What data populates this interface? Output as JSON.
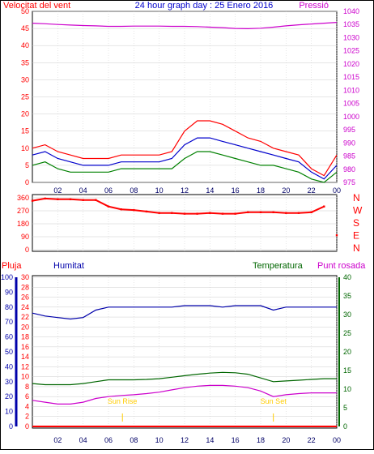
{
  "header": {
    "left_title": "Velocitat del vent",
    "center_title": "24 hour graph day : 25 Enero 2016",
    "right_title": "Pressió"
  },
  "labels": {
    "pluja": "Pluja",
    "humitat": "Humitat",
    "temperatura": "Temperatura",
    "punt_rosada": "Punt rosada",
    "sun_rise": "Sun Rise",
    "sun_set": "Sun Set"
  },
  "colors": {
    "wind_title": "#ff0000",
    "pressure": "#cc00cc",
    "wind_gust": "#ff0000",
    "wind_avg": "#0000cc",
    "wind_speed": "#008000",
    "direction": "#ff0000",
    "humidity": "#0000aa",
    "temperature": "#006600",
    "dewpoint": "#cc00cc",
    "rain": "#ff0000",
    "sun": "#ffcc00",
    "grid": "#cccccc"
  },
  "x_ticks": [
    "02",
    "04",
    "06",
    "08",
    "10",
    "12",
    "14",
    "16",
    "18",
    "20",
    "22",
    "00"
  ],
  "chart_data": [
    {
      "type": "line",
      "name": "wind-pressure",
      "title": "24 hour graph day : 25 Enero 2016",
      "y_left_label": "Velocitat del vent",
      "y_right_label": "Pressió",
      "y_left_ticks": [
        "0",
        "5",
        "10",
        "15",
        "20",
        "25",
        "30",
        "35",
        "40",
        "45",
        "50"
      ],
      "y_left_lim": [
        0,
        50
      ],
      "y_right_ticks": [
        "975",
        "980",
        "985",
        "990",
        "995",
        "1000",
        "1005",
        "1010",
        "1015",
        "1020",
        "1025",
        "1030",
        "1035",
        "1040"
      ],
      "y_right_lim": [
        975,
        1040
      ],
      "hours": [
        0,
        1,
        2,
        3,
        4,
        5,
        6,
        7,
        8,
        9,
        10,
        11,
        12,
        13,
        14,
        15,
        16,
        17,
        18,
        19,
        20,
        21,
        22,
        23,
        24
      ],
      "pressure": [
        1035.5,
        1035.3,
        1035.0,
        1034.8,
        1034.6,
        1034.5,
        1034.3,
        1034.3,
        1034.4,
        1034.4,
        1034.4,
        1034.3,
        1034.3,
        1034.2,
        1034.0,
        1033.8,
        1033.5,
        1033.4,
        1033.6,
        1034.0,
        1034.5,
        1034.9,
        1035.2,
        1035.5,
        1035.8
      ],
      "wind_gust": [
        10,
        11,
        9,
        8,
        7,
        7,
        7,
        8,
        8,
        8,
        8,
        9,
        15,
        18,
        18,
        17,
        15,
        13,
        12,
        10,
        9,
        8,
        4,
        2,
        8
      ],
      "wind_avg": [
        8,
        9,
        7,
        6,
        5,
        5,
        5,
        6,
        6,
        6,
        6,
        7,
        11,
        13,
        13,
        12,
        11,
        10,
        9,
        8,
        7,
        6,
        3,
        1,
        5
      ],
      "wind_speed": [
        5,
        6,
        4,
        3,
        3,
        3,
        3,
        4,
        4,
        4,
        4,
        4,
        7,
        9,
        9,
        8,
        7,
        6,
        5,
        5,
        4,
        3,
        1,
        0,
        3
      ]
    },
    {
      "type": "scatter",
      "name": "wind-direction",
      "y_ticks": [
        "360",
        "270",
        "180",
        "90",
        "0"
      ],
      "y_lim": [
        0,
        360
      ],
      "right_labels": [
        "N",
        "W",
        "S",
        "E",
        "N"
      ],
      "hours": [
        0,
        1,
        2,
        3,
        4,
        5,
        6,
        7,
        8,
        9,
        10,
        11,
        12,
        13,
        14,
        15,
        16,
        17,
        18,
        19,
        20,
        21,
        22,
        23,
        24
      ],
      "direction": [
        340,
        355,
        350,
        350,
        345,
        345,
        300,
        280,
        275,
        265,
        255,
        255,
        250,
        250,
        255,
        250,
        250,
        260,
        260,
        260,
        255,
        255,
        260,
        300,
        100
      ]
    },
    {
      "type": "line",
      "name": "humidity-temperature",
      "y_pluja_ticks": [
        "0",
        "2",
        "4",
        "6",
        "8",
        "10",
        "12",
        "14",
        "16",
        "18",
        "20",
        "22",
        "24",
        "26",
        "28",
        "30"
      ],
      "y_pluja_lim": [
        0,
        30
      ],
      "y_hum_ticks": [
        "0",
        "10",
        "20",
        "30",
        "40",
        "50",
        "60",
        "70",
        "80",
        "90",
        "100"
      ],
      "y_hum_lim": [
        0,
        100
      ],
      "y_right_ticks": [
        "0",
        "5",
        "10",
        "15",
        "20",
        "25",
        "30",
        "35",
        "40"
      ],
      "y_right_lim": [
        0,
        40
      ],
      "hours": [
        0,
        1,
        2,
        3,
        4,
        5,
        6,
        7,
        8,
        9,
        10,
        11,
        12,
        13,
        14,
        15,
        16,
        17,
        18,
        19,
        20,
        21,
        22,
        23,
        24
      ],
      "humidity": [
        76,
        74,
        73,
        72,
        73,
        78,
        80,
        80,
        80,
        80,
        80,
        80,
        81,
        81,
        81,
        80,
        81,
        81,
        81,
        78,
        80,
        80,
        80,
        80,
        80
      ],
      "temperature": [
        11.5,
        11.2,
        11.2,
        11.2,
        11.5,
        12.0,
        12.5,
        12.5,
        12.5,
        12.6,
        12.8,
        13.2,
        13.6,
        14.0,
        14.3,
        14.5,
        14.4,
        14.0,
        13.0,
        12.0,
        12.2,
        12.4,
        12.6,
        12.8,
        12.8
      ],
      "dewpoint": [
        7.0,
        6.5,
        6.0,
        6.0,
        6.5,
        7.5,
        8.0,
        8.3,
        8.5,
        8.8,
        9.2,
        9.8,
        10.4,
        10.8,
        11.0,
        11.0,
        10.8,
        10.4,
        9.5,
        8.0,
        8.5,
        8.8,
        9.0,
        9.0,
        9.0
      ],
      "rain": [
        0,
        0,
        0,
        0,
        0,
        0,
        0,
        0,
        0,
        0,
        0,
        0,
        0,
        0,
        0,
        0,
        0,
        0,
        0,
        0,
        0,
        0,
        0,
        0,
        0
      ],
      "sun_rise_hour": 7.1,
      "sun_set_hour": 19.0
    }
  ]
}
